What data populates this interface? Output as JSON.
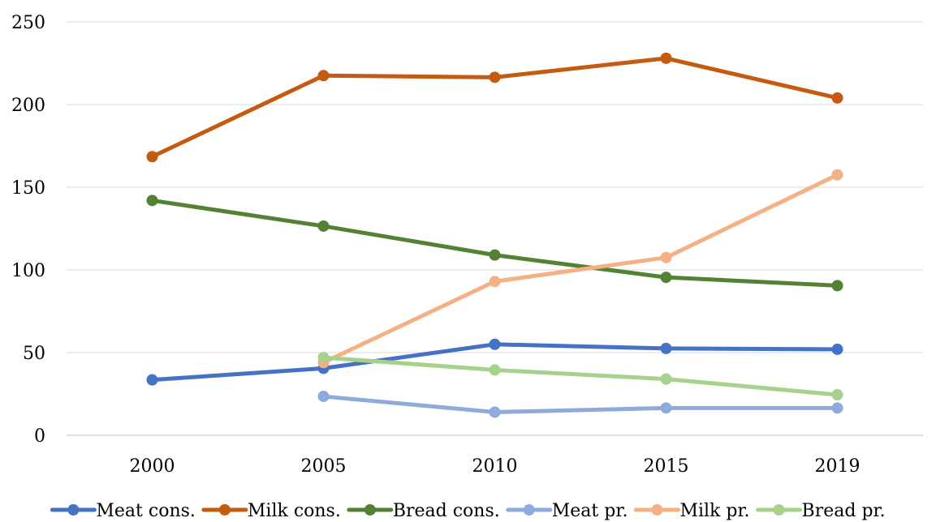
{
  "chart_data": {
    "type": "line",
    "title": "",
    "xlabel": "",
    "ylabel": "",
    "categories": [
      "2000",
      "2005",
      "2010",
      "2015",
      "2019"
    ],
    "ylim": [
      0,
      250
    ],
    "yticks": [
      0,
      50,
      100,
      150,
      200,
      250
    ],
    "grid": "horizontal",
    "legend_position": "bottom",
    "series": [
      {
        "name": "Meat cons.",
        "color": "#4472C4",
        "values": [
          33.5,
          40.5,
          55,
          52.5,
          52
        ]
      },
      {
        "name": "Milk cons.",
        "color": "#C55A11",
        "values": [
          168.5,
          217.5,
          216.5,
          228,
          204
        ]
      },
      {
        "name": "Bread cons.",
        "color": "#548235",
        "values": [
          142,
          126.5,
          109,
          95.5,
          90.5
        ]
      },
      {
        "name": "Meat pr.",
        "color": "#8FAADC",
        "values": [
          null,
          23.5,
          14,
          16.5,
          16.5
        ]
      },
      {
        "name": "Milk pr.",
        "color": "#F4B183",
        "values": [
          null,
          44,
          93,
          107.5,
          157.5
        ]
      },
      {
        "name": "Bread pr.",
        "color": "#A9D18E",
        "values": [
          null,
          47,
          39.5,
          34,
          24.5
        ]
      }
    ]
  }
}
